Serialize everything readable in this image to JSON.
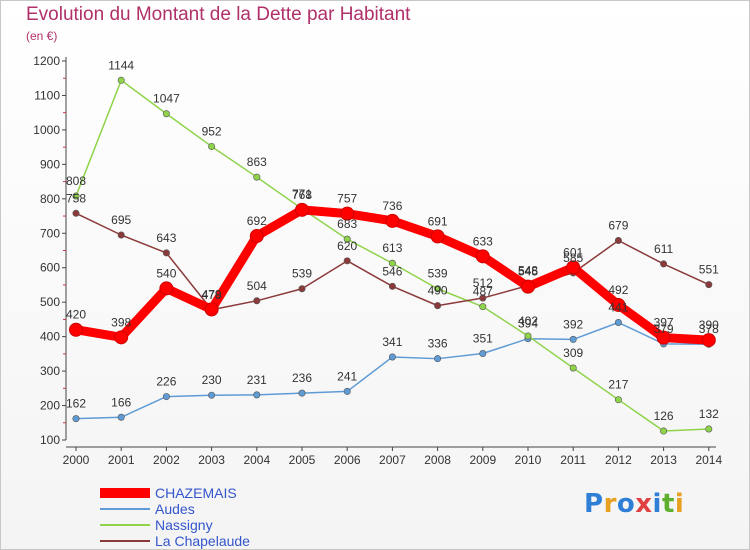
{
  "title": "Evolution du Montant de la Dette par Habitant",
  "unit": "(en €)",
  "logo": "Proxiti",
  "chart_data": {
    "type": "line",
    "x": [
      "2000",
      "2001",
      "2002",
      "2003",
      "2004",
      "2005",
      "2006",
      "2007",
      "2008",
      "2009",
      "2010",
      "2011",
      "2012",
      "2013",
      "2014"
    ],
    "ylim": [
      100,
      1200
    ],
    "yticks": [
      100,
      200,
      300,
      400,
      500,
      600,
      700,
      800,
      900,
      1000,
      1100,
      1200
    ],
    "grid": false,
    "legend": "bottom-left",
    "series": [
      {
        "name": "CHAZEMAIS",
        "color": "#ff0000",
        "values": [
          420,
          398,
          540,
          479,
          692,
          768,
          757,
          736,
          691,
          633,
          545,
          601,
          492,
          397,
          390
        ]
      },
      {
        "name": "Audes",
        "color": "#5f9bd5",
        "values": [
          162,
          166,
          226,
          230,
          231,
          236,
          241,
          341,
          336,
          351,
          394,
          392,
          441,
          379,
          378
        ]
      },
      {
        "name": "Nassigny",
        "color": "#8fd34a",
        "values": [
          808,
          1144,
          1047,
          952,
          863,
          771,
          683,
          613,
          539,
          487,
          402,
          309,
          217,
          126,
          132
        ]
      },
      {
        "name": "La Chapelaude",
        "color": "#8b3a3a",
        "values": [
          758,
          695,
          643,
          478,
          504,
          539,
          620,
          546,
          490,
          512,
          548,
          585,
          679,
          611,
          551
        ]
      }
    ]
  }
}
